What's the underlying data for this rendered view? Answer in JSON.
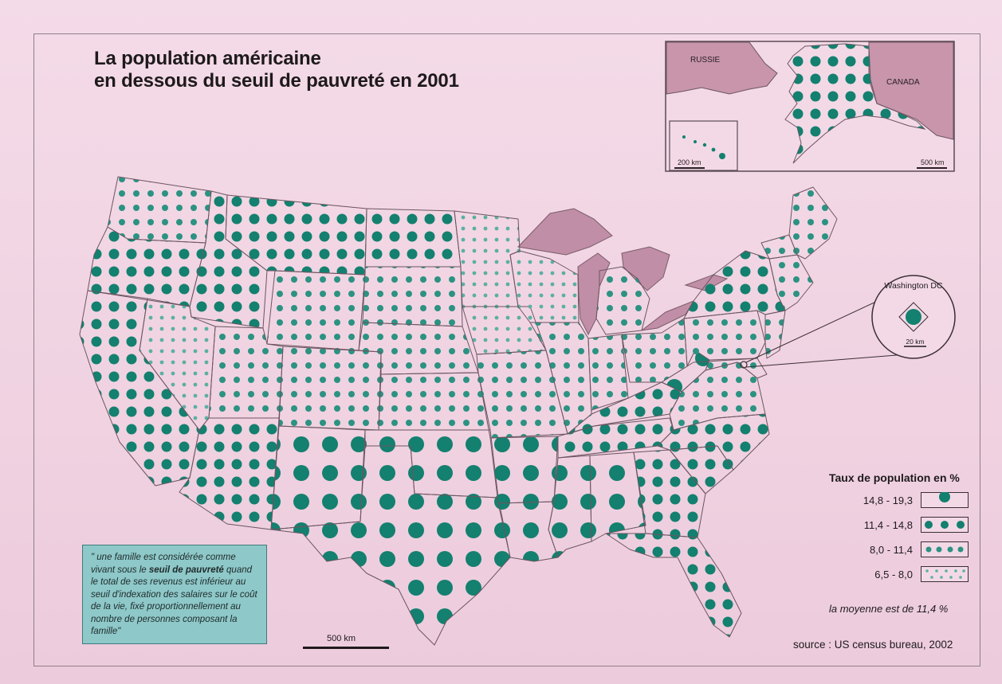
{
  "title": {
    "line1": "La population américaine",
    "line2": "en dessous du seuil de pauvreté en 2001"
  },
  "inset": {
    "russia_label": "RUSSIE",
    "canada_label": "CANADA",
    "hawaii_scale": "200 km",
    "alaska_scale": "500 km"
  },
  "dc_callout": {
    "label": "Washington DC",
    "scale": "20 km"
  },
  "scale_bar": "500 km",
  "quote": {
    "part1": "\" une famille est considérée comme vivant sous le ",
    "bold": "seuil de pauvreté",
    "part2": " quand le total de ses revenus est inférieur au seuil d'indexation des salaires sur le coût de la vie, fixé proportionnellement au nombre de personnes composant la famille\""
  },
  "legend": {
    "title": "Taux de population en %",
    "classes": [
      {
        "label": "14,8 - 19,3",
        "pattern": "large-dots"
      },
      {
        "label": "11,4 - 14,8",
        "pattern": "medium-dots"
      },
      {
        "label": "8,0 - 11,4",
        "pattern": "small-dots"
      },
      {
        "label": "6,5 - 8,0",
        "pattern": "tiny-dots"
      }
    ],
    "note": "la moyenne est de 11,4 %"
  },
  "source": "source : US census bureau, 2002",
  "colors": {
    "dot": "#14806f",
    "dot_light": "#4aa193",
    "land_foreign": "#c895ab",
    "water": "#c08ea6",
    "paper": "#f3d9e6"
  }
}
